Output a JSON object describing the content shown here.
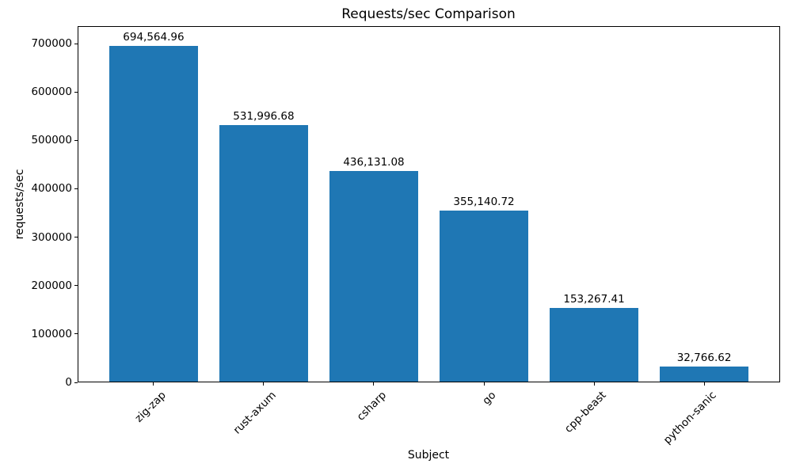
{
  "chart_data": {
    "type": "bar",
    "title": "Requests/sec Comparison",
    "xlabel": "Subject",
    "ylabel": "requests/sec",
    "categories": [
      "zig-zap",
      "rust-axum",
      "csharp",
      "go",
      "cpp-beast",
      "python-sanic"
    ],
    "values": [
      694564.96,
      531996.68,
      436131.08,
      355140.72,
      153267.41,
      32766.62
    ],
    "value_labels": [
      "694,564.96",
      "531,996.68",
      "436,131.08",
      "355,140.72",
      "153,267.41",
      "32,766.62"
    ],
    "ytick_values": [
      0,
      100000,
      200000,
      300000,
      400000,
      500000,
      600000,
      700000
    ],
    "ytick_labels": [
      "0",
      "100000",
      "200000",
      "300000",
      "400000",
      "500000",
      "600000",
      "700000"
    ],
    "ylim": [
      0,
      736000
    ],
    "bar_color": "#1f77b4",
    "grid": false,
    "legend": "none",
    "xtick_rotation_deg": 45
  }
}
